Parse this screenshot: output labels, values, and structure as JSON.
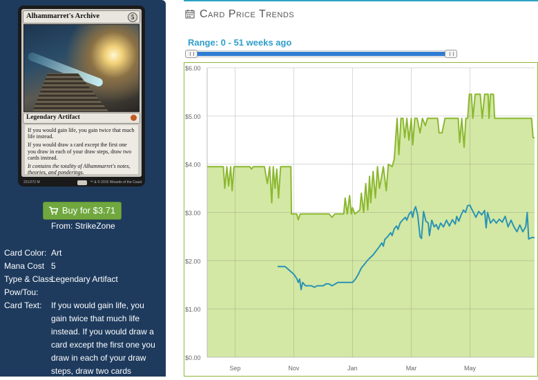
{
  "card": {
    "name": "Alhammarret's Archive",
    "mana_cost": "5",
    "type_line": "Legendary Artifact",
    "rules": [
      "If you would gain life, you gain twice that much life instead.",
      "If you would draw a card except the first one you draw in each of your draw steps, draw two cards instead."
    ],
    "flavor": "It contains the totality of Alhammarret's notes, theories, and ponderings.",
    "footer": "221/272 M",
    "copyright": "™ & © 2015 Wizards of the Coast",
    "set_icon_color": "#c45a1e"
  },
  "buy": {
    "label": "Buy for $3.71",
    "from": "From: StrikeZone",
    "icon": "cart-icon",
    "color": "#70a83f"
  },
  "properties": [
    {
      "label": "Card Color:",
      "value": "Art"
    },
    {
      "label": "Mana Cost",
      "value": "5"
    },
    {
      "label": "Type & Class:",
      "value": "Legendary Artifact"
    },
    {
      "label": "Pow/Tou:",
      "value": ""
    },
    {
      "label": "Card Text:",
      "value": "If you would gain life, you gain twice that much life instead. If you would draw a card except the first one you draw in each of your draw steps, draw two cards instead."
    }
  ],
  "panel": {
    "title": "Card Price Trends",
    "title_icon": "calendar-icon",
    "range_label": "Range: 0 - 51 weeks ago",
    "accent": "#2aa3c4"
  },
  "chart_data": {
    "type": "line",
    "ylim": [
      0,
      6
    ],
    "yticks": [
      "$0.00",
      "$1.00",
      "$2.00",
      "$3.00",
      "$4.00",
      "$5.00",
      "$6.00"
    ],
    "x_range_months": [
      7.0,
      12.9
    ],
    "xticks": [
      {
        "label": "Sep",
        "pos": 8.0
      },
      {
        "label": "Nov",
        "pos": 10.0
      },
      {
        "label": "Jan",
        "pos": 12.0
      },
      {
        "label": "Mar",
        "pos": 14.0
      },
      {
        "label": "May",
        "pos": 16.0
      }
    ],
    "xlim": [
      7.05,
      18.2
    ],
    "grid": true,
    "series": [
      {
        "area": true,
        "color": "#8bb82f",
        "fill": "#d3e8a4",
        "points": [
          [
            7.05,
            3.95
          ],
          [
            7.6,
            3.95
          ],
          [
            7.65,
            3.5
          ],
          [
            7.72,
            3.95
          ],
          [
            7.78,
            3.55
          ],
          [
            7.85,
            3.95
          ],
          [
            7.9,
            3.45
          ],
          [
            7.96,
            3.95
          ],
          [
            8.0,
            3.95
          ],
          [
            8.5,
            3.95
          ],
          [
            8.56,
            3.9
          ],
          [
            8.62,
            3.95
          ],
          [
            9.0,
            3.95
          ],
          [
            9.1,
            3.6
          ],
          [
            9.18,
            3.95
          ],
          [
            9.25,
            3.2
          ],
          [
            9.3,
            3.95
          ],
          [
            9.36,
            3.5
          ],
          [
            9.42,
            3.9
          ],
          [
            9.48,
            3.3
          ],
          [
            9.55,
            3.95
          ],
          [
            9.9,
            3.95
          ],
          [
            9.92,
            2.97
          ],
          [
            10.0,
            2.97
          ],
          [
            10.1,
            2.97
          ],
          [
            10.15,
            2.85
          ],
          [
            10.22,
            2.97
          ],
          [
            10.6,
            2.97
          ],
          [
            11.2,
            2.97
          ],
          [
            11.3,
            2.9
          ],
          [
            11.4,
            2.97
          ],
          [
            11.7,
            2.97
          ],
          [
            11.75,
            3.3
          ],
          [
            11.82,
            2.97
          ],
          [
            11.9,
            3.35
          ],
          [
            11.96,
            2.97
          ],
          [
            12.0,
            3.1
          ],
          [
            12.08,
            2.97
          ],
          [
            12.25,
            3.05
          ],
          [
            12.3,
            3.4
          ],
          [
            12.38,
            3.0
          ],
          [
            12.45,
            3.6
          ],
          [
            12.52,
            3.05
          ],
          [
            12.58,
            3.75
          ],
          [
            12.62,
            3.2
          ],
          [
            12.7,
            3.85
          ],
          [
            12.78,
            3.3
          ],
          [
            12.85,
            3.95
          ],
          [
            12.92,
            3.5
          ],
          [
            13.05,
            3.95
          ],
          [
            13.15,
            3.45
          ],
          [
            13.22,
            4.0
          ],
          [
            13.35,
            3.95
          ],
          [
            13.42,
            4.1
          ],
          [
            13.52,
            4.95
          ],
          [
            13.58,
            4.2
          ],
          [
            13.65,
            4.95
          ],
          [
            13.72,
            4.95
          ],
          [
            13.78,
            4.55
          ],
          [
            13.85,
            4.95
          ],
          [
            13.92,
            4.5
          ],
          [
            14.0,
            4.95
          ],
          [
            14.05,
            4.4
          ],
          [
            14.12,
            4.95
          ],
          [
            14.2,
            4.95
          ],
          [
            14.3,
            4.65
          ],
          [
            14.38,
            4.95
          ],
          [
            14.48,
            4.8
          ],
          [
            14.55,
            4.95
          ],
          [
            14.9,
            4.95
          ],
          [
            14.95,
            4.65
          ],
          [
            15.05,
            4.65
          ],
          [
            15.15,
            4.95
          ],
          [
            15.6,
            4.95
          ],
          [
            15.65,
            4.45
          ],
          [
            15.72,
            4.95
          ],
          [
            15.8,
            4.35
          ],
          [
            15.86,
            4.95
          ],
          [
            15.92,
            4.95
          ],
          [
            15.98,
            5.45
          ],
          [
            16.05,
            5.45
          ],
          [
            16.1,
            4.95
          ],
          [
            16.18,
            5.45
          ],
          [
            16.35,
            5.45
          ],
          [
            16.42,
            4.95
          ],
          [
            16.5,
            5.45
          ],
          [
            16.62,
            5.45
          ],
          [
            16.65,
            4.95
          ],
          [
            16.7,
            5.45
          ],
          [
            16.8,
            5.45
          ],
          [
            16.84,
            4.95
          ],
          [
            17.5,
            4.95
          ],
          [
            18.1,
            4.95
          ],
          [
            18.15,
            4.55
          ],
          [
            18.2,
            4.55
          ]
        ]
      },
      {
        "area": false,
        "color": "#2a93b3",
        "points": [
          [
            9.45,
            1.88
          ],
          [
            9.7,
            1.88
          ],
          [
            9.85,
            1.8
          ],
          [
            10.0,
            1.72
          ],
          [
            10.1,
            1.63
          ],
          [
            10.15,
            1.55
          ],
          [
            10.2,
            1.62
          ],
          [
            10.25,
            1.4
          ],
          [
            10.3,
            1.55
          ],
          [
            10.4,
            1.48
          ],
          [
            10.6,
            1.48
          ],
          [
            10.7,
            1.45
          ],
          [
            10.8,
            1.48
          ],
          [
            11.0,
            1.48
          ],
          [
            11.1,
            1.52
          ],
          [
            11.2,
            1.52
          ],
          [
            11.3,
            1.48
          ],
          [
            11.5,
            1.55
          ],
          [
            11.8,
            1.55
          ],
          [
            12.0,
            1.55
          ],
          [
            12.1,
            1.62
          ],
          [
            12.2,
            1.72
          ],
          [
            12.3,
            1.85
          ],
          [
            12.4,
            1.92
          ],
          [
            12.5,
            2.0
          ],
          [
            12.6,
            2.06
          ],
          [
            12.7,
            2.12
          ],
          [
            12.8,
            2.2
          ],
          [
            12.9,
            2.28
          ],
          [
            13.0,
            2.37
          ],
          [
            13.05,
            2.3
          ],
          [
            13.1,
            2.44
          ],
          [
            13.2,
            2.5
          ],
          [
            13.3,
            2.58
          ],
          [
            13.35,
            2.52
          ],
          [
            13.42,
            2.66
          ],
          [
            13.5,
            2.72
          ],
          [
            13.55,
            2.65
          ],
          [
            13.62,
            2.78
          ],
          [
            13.7,
            2.84
          ],
          [
            13.8,
            2.9
          ],
          [
            13.85,
            2.84
          ],
          [
            13.92,
            2.96
          ],
          [
            14.0,
            3.02
          ],
          [
            14.05,
            2.9
          ],
          [
            14.1,
            3.05
          ],
          [
            14.15,
            3.12
          ],
          [
            14.22,
            2.95
          ],
          [
            14.3,
            2.5
          ],
          [
            14.35,
            2.46
          ],
          [
            14.42,
            3.02
          ],
          [
            14.5,
            2.82
          ],
          [
            14.58,
            2.78
          ],
          [
            14.62,
            2.52
          ],
          [
            14.7,
            2.84
          ],
          [
            14.78,
            2.7
          ],
          [
            14.85,
            2.75
          ],
          [
            14.92,
            2.65
          ],
          [
            15.0,
            2.78
          ],
          [
            15.1,
            2.7
          ],
          [
            15.2,
            2.84
          ],
          [
            15.3,
            2.72
          ],
          [
            15.4,
            2.85
          ],
          [
            15.5,
            2.76
          ],
          [
            15.55,
            2.92
          ],
          [
            15.62,
            2.82
          ],
          [
            15.7,
            2.95
          ],
          [
            15.78,
            3.05
          ],
          [
            15.85,
            3.0
          ],
          [
            15.92,
            3.14
          ],
          [
            16.0,
            3.15
          ],
          [
            16.05,
            3.08
          ],
          [
            16.12,
            3.0
          ],
          [
            16.2,
            2.9
          ],
          [
            16.3,
            3.02
          ],
          [
            16.4,
            2.95
          ],
          [
            16.5,
            3.04
          ],
          [
            16.55,
            2.68
          ],
          [
            16.6,
            3.0
          ],
          [
            16.7,
            2.78
          ],
          [
            16.8,
            2.86
          ],
          [
            16.9,
            2.78
          ],
          [
            17.0,
            2.86
          ],
          [
            17.1,
            2.8
          ],
          [
            17.2,
            2.92
          ],
          [
            17.3,
            2.7
          ],
          [
            17.4,
            2.84
          ],
          [
            17.5,
            2.7
          ],
          [
            17.6,
            2.6
          ],
          [
            17.7,
            2.74
          ],
          [
            17.8,
            2.6
          ],
          [
            17.9,
            2.7
          ],
          [
            17.95,
            3.0
          ],
          [
            18.0,
            2.45
          ],
          [
            18.1,
            2.48
          ],
          [
            18.2,
            2.48
          ]
        ]
      }
    ]
  }
}
